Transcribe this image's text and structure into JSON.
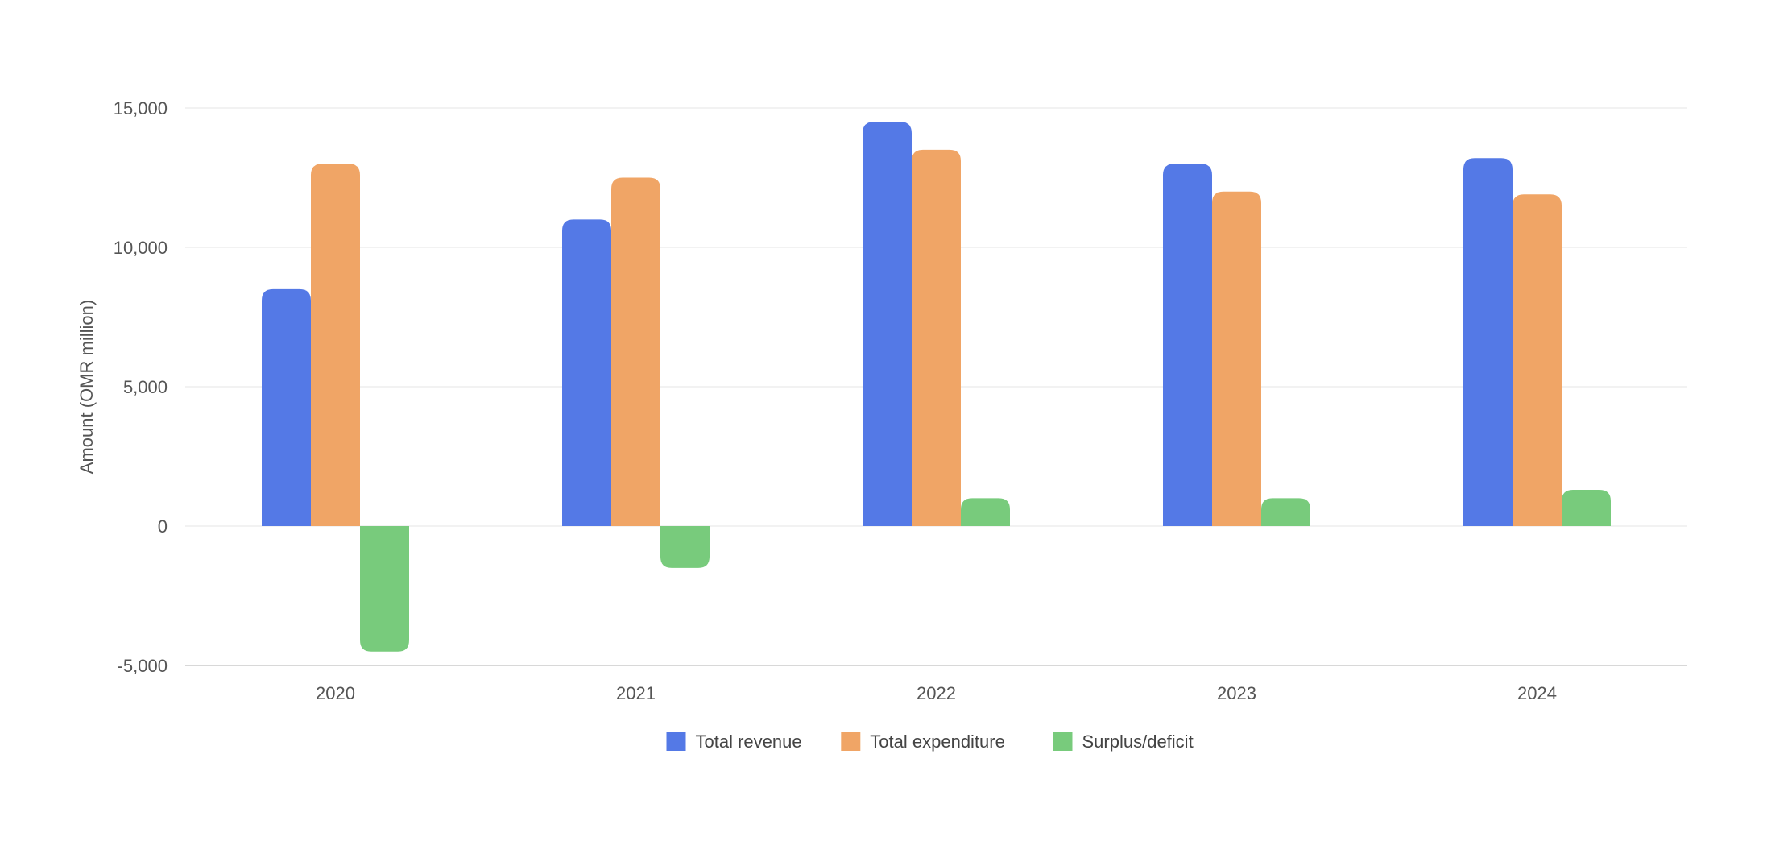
{
  "chart_data": {
    "type": "bar",
    "title": "",
    "xlabel": "",
    "ylabel": "Amount (OMR million)",
    "categories": [
      "2020",
      "2021",
      "2022",
      "2023",
      "2024"
    ],
    "series": [
      {
        "name": "Total revenue",
        "color": "#5479e6",
        "values": [
          8500,
          11000,
          14500,
          13000,
          13200
        ]
      },
      {
        "name": "Total expenditure",
        "color": "#f0a566",
        "values": [
          13000,
          12500,
          13500,
          12000,
          11900
        ]
      },
      {
        "name": "Surplus/deficit",
        "color": "#78cb7c",
        "values": [
          -4500,
          -1500,
          1000,
          1000,
          1300
        ]
      }
    ],
    "ylim": [
      -5000,
      15000
    ],
    "yticks": [
      15000,
      10000,
      5000,
      0,
      -5000
    ],
    "ytick_labels": [
      "15,000",
      "10,000",
      "5,000",
      "0",
      "-5,000"
    ],
    "grid": true,
    "legend_position": "bottom-center"
  }
}
